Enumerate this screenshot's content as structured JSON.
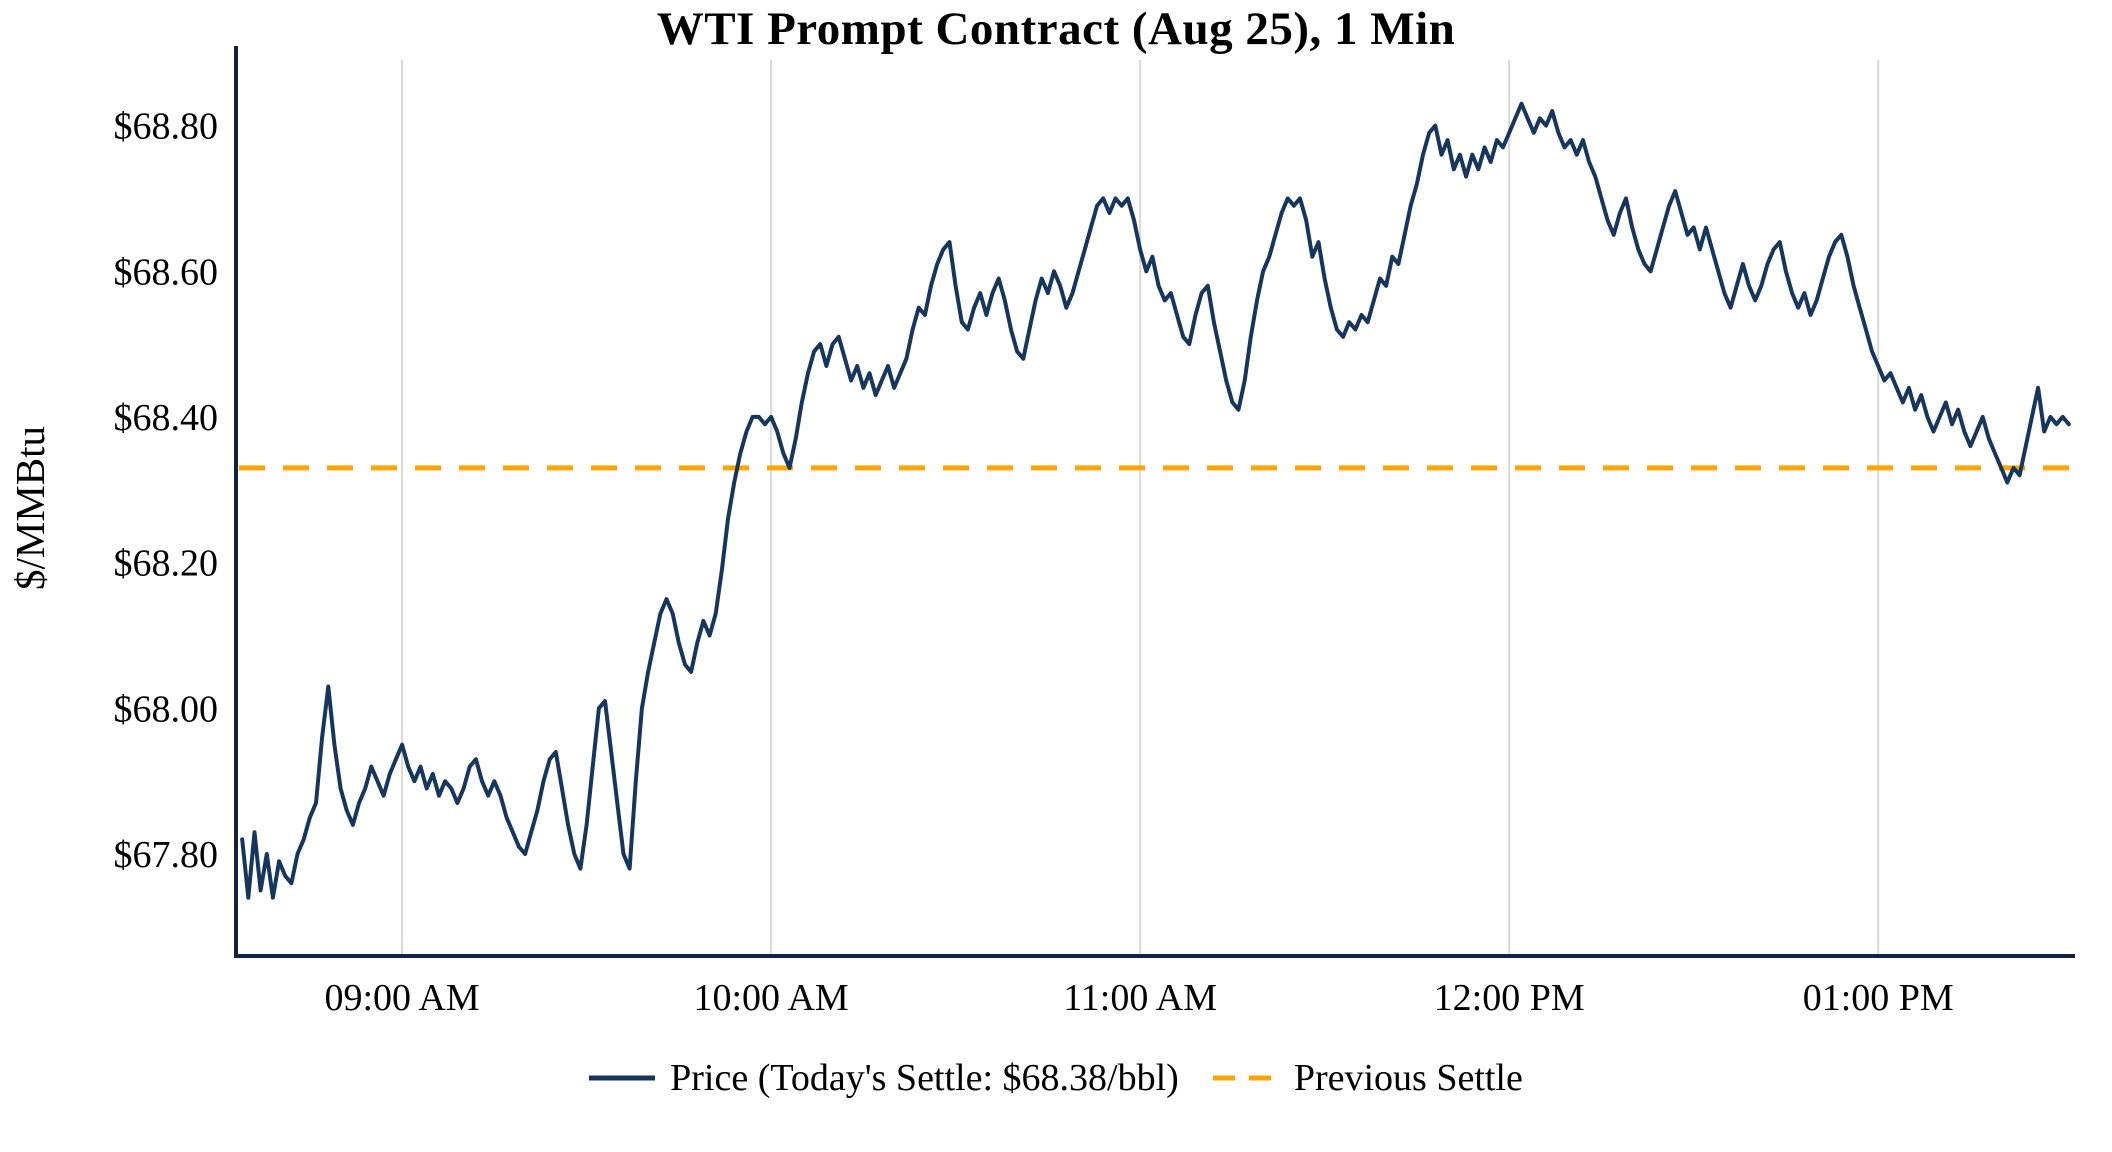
{
  "chart_data": {
    "type": "line",
    "title": "WTI Prompt Contract (Aug 25), 1 Min",
    "ylabel": "$/MMBtu",
    "xlabel": "",
    "grid": "vertical",
    "legend_position": "bottom-center",
    "x_axis": {
      "unit": "minutes",
      "total_minutes": 299,
      "ticks": [
        {
          "minute": 27,
          "label": "09:00 AM"
        },
        {
          "minute": 87,
          "label": "10:00 AM"
        },
        {
          "minute": 147,
          "label": "11:00 AM"
        },
        {
          "minute": 207,
          "label": "12:00 PM"
        },
        {
          "minute": 267,
          "label": "01:00 PM"
        }
      ]
    },
    "y_axis": {
      "lim": [
        67.66,
        68.89
      ],
      "ticks": [
        {
          "value": 67.8,
          "label": "$67.80"
        },
        {
          "value": 68.0,
          "label": "$68.00"
        },
        {
          "value": 68.2,
          "label": "$68.20"
        },
        {
          "value": 68.4,
          "label": "$68.40"
        },
        {
          "value": 68.6,
          "label": "$68.60"
        },
        {
          "value": 68.8,
          "label": "$68.80"
        }
      ]
    },
    "series": [
      {
        "name": "Price (Today's Settle: $68.38/bbl)",
        "kind": "line",
        "color": "#17365d",
        "start_minute": 1,
        "step_minutes": 1,
        "values": [
          67.82,
          67.74,
          67.83,
          67.75,
          67.8,
          67.74,
          67.79,
          67.77,
          67.76,
          67.8,
          67.82,
          67.85,
          67.87,
          67.96,
          68.03,
          67.95,
          67.89,
          67.86,
          67.84,
          67.87,
          67.89,
          67.92,
          67.9,
          67.88,
          67.91,
          67.93,
          67.95,
          67.92,
          67.9,
          67.92,
          67.89,
          67.91,
          67.88,
          67.9,
          67.89,
          67.87,
          67.89,
          67.92,
          67.93,
          67.9,
          67.88,
          67.9,
          67.88,
          67.85,
          67.83,
          67.81,
          67.8,
          67.83,
          67.86,
          67.9,
          67.93,
          67.94,
          67.89,
          67.84,
          67.8,
          67.78,
          67.84,
          67.92,
          68.0,
          68.01,
          67.94,
          67.87,
          67.8,
          67.78,
          67.9,
          68.0,
          68.05,
          68.09,
          68.13,
          68.15,
          68.13,
          68.09,
          68.06,
          68.05,
          68.09,
          68.12,
          68.1,
          68.13,
          68.19,
          68.26,
          68.31,
          68.35,
          68.38,
          68.4,
          68.4,
          68.39,
          68.4,
          68.38,
          68.35,
          68.33,
          68.37,
          68.42,
          68.46,
          68.49,
          68.5,
          68.47,
          68.5,
          68.51,
          68.48,
          68.45,
          68.47,
          68.44,
          68.46,
          68.43,
          68.45,
          68.47,
          68.44,
          68.46,
          68.48,
          68.52,
          68.55,
          68.54,
          68.58,
          68.61,
          68.63,
          68.64,
          68.58,
          68.53,
          68.52,
          68.55,
          68.57,
          68.54,
          68.57,
          68.59,
          68.56,
          68.52,
          68.49,
          68.48,
          68.52,
          68.56,
          68.59,
          68.57,
          68.6,
          68.58,
          68.55,
          68.57,
          68.6,
          68.63,
          68.66,
          68.69,
          68.7,
          68.68,
          68.7,
          68.69,
          68.7,
          68.67,
          68.63,
          68.6,
          68.62,
          68.58,
          68.56,
          68.57,
          68.54,
          68.51,
          68.5,
          68.54,
          68.57,
          68.58,
          68.53,
          68.49,
          68.45,
          68.42,
          68.41,
          68.45,
          68.51,
          68.56,
          68.6,
          68.62,
          68.65,
          68.68,
          68.7,
          68.69,
          68.7,
          68.67,
          68.62,
          68.64,
          68.59,
          68.55,
          68.52,
          68.51,
          68.53,
          68.52,
          68.54,
          68.53,
          68.56,
          68.59,
          68.58,
          68.62,
          68.61,
          68.65,
          68.69,
          68.72,
          68.76,
          68.79,
          68.8,
          68.76,
          68.78,
          68.74,
          68.76,
          68.73,
          68.76,
          68.74,
          68.77,
          68.75,
          68.78,
          68.77,
          68.79,
          68.81,
          68.83,
          68.81,
          68.79,
          68.81,
          68.8,
          68.82,
          68.79,
          68.77,
          68.78,
          68.76,
          68.78,
          68.75,
          68.73,
          68.7,
          68.67,
          68.65,
          68.68,
          68.7,
          68.66,
          68.63,
          68.61,
          68.6,
          68.63,
          68.66,
          68.69,
          68.71,
          68.68,
          68.65,
          68.66,
          68.63,
          68.66,
          68.63,
          68.6,
          68.57,
          68.55,
          68.58,
          68.61,
          68.58,
          68.56,
          68.58,
          68.61,
          68.63,
          68.64,
          68.6,
          68.57,
          68.55,
          68.57,
          68.54,
          68.56,
          68.59,
          68.62,
          68.64,
          68.65,
          68.62,
          68.58,
          68.55,
          68.52,
          68.49,
          68.47,
          68.45,
          68.46,
          68.44,
          68.42,
          68.44,
          68.41,
          68.43,
          68.4,
          68.38,
          68.4,
          68.42,
          68.39,
          68.41,
          68.38,
          68.36,
          68.38,
          68.4,
          68.37,
          68.35,
          68.33,
          68.31,
          68.33,
          68.32,
          68.36,
          68.4,
          68.44,
          68.38,
          68.4,
          68.39,
          68.4,
          68.39
        ]
      },
      {
        "name": "Previous Settle",
        "kind": "hline",
        "style": "dashed",
        "color": "#ffa500",
        "value": 68.33
      }
    ],
    "todays_settle": 68.38
  },
  "legend": {
    "price_label": "Price (Today's Settle: $68.38/bbl)",
    "settle_label": "Previous Settle"
  },
  "colors": {
    "price_line": "#17365d",
    "previous_settle": "#ffa500",
    "grid": "#d9d9d9",
    "axis": "#10243f",
    "text": "#000000",
    "background": "#ffffff"
  }
}
